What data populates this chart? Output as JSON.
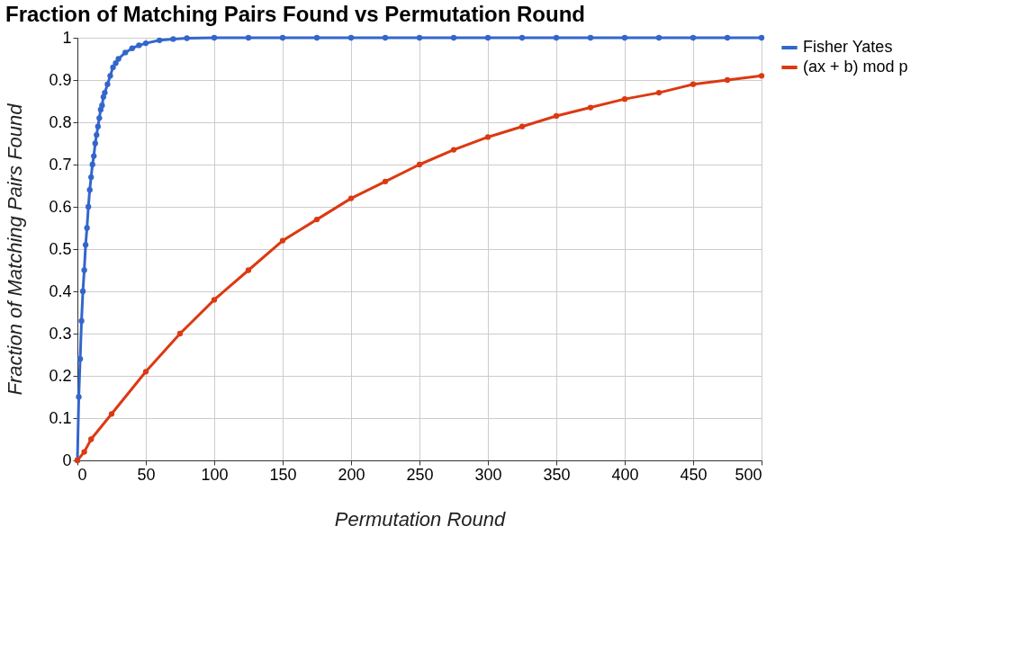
{
  "chart_data": {
    "type": "line",
    "title": "Fraction of Matching Pairs Found vs Permutation Round",
    "xlabel": "Permutation Round",
    "ylabel": "Fraction of Matching Pairs Found",
    "xlim": [
      0,
      500
    ],
    "xticks": [
      0,
      50,
      100,
      150,
      200,
      250,
      300,
      350,
      400,
      450,
      500
    ],
    "ylim": [
      0,
      1
    ],
    "yticks": [
      0,
      0.1,
      0.2,
      0.3,
      0.4,
      0.5,
      0.6,
      0.7,
      0.8,
      0.9,
      1
    ],
    "grid": true,
    "legend": "right",
    "marker": "circle",
    "line_style": "solid",
    "series": [
      {
        "name": "Fisher Yates",
        "color": "#3366cc",
        "x": [
          0,
          1,
          2,
          3,
          4,
          5,
          6,
          7,
          8,
          9,
          10,
          11,
          12,
          13,
          14,
          15,
          16,
          17,
          18,
          19,
          20,
          22,
          24,
          26,
          28,
          30,
          35,
          40,
          45,
          50,
          60,
          70,
          80,
          100,
          125,
          150,
          175,
          200,
          225,
          250,
          275,
          300,
          325,
          350,
          375,
          400,
          425,
          450,
          475,
          500
        ],
        "values": [
          0,
          0.15,
          0.24,
          0.33,
          0.4,
          0.45,
          0.51,
          0.55,
          0.6,
          0.64,
          0.67,
          0.7,
          0.72,
          0.75,
          0.77,
          0.79,
          0.81,
          0.83,
          0.84,
          0.86,
          0.87,
          0.89,
          0.91,
          0.93,
          0.94,
          0.95,
          0.965,
          0.975,
          0.982,
          0.987,
          0.994,
          0.997,
          0.999,
          1,
          1,
          1,
          1,
          1,
          1,
          1,
          1,
          1,
          1,
          1,
          1,
          1,
          1,
          1,
          1,
          1
        ]
      },
      {
        "name": "(ax + b) mod p",
        "color": "#dc3912",
        "x": [
          0,
          5,
          10,
          25,
          50,
          75,
          100,
          125,
          150,
          175,
          200,
          225,
          250,
          275,
          300,
          325,
          350,
          375,
          400,
          425,
          450,
          475,
          500
        ],
        "values": [
          0,
          0.02,
          0.05,
          0.11,
          0.21,
          0.3,
          0.38,
          0.45,
          0.52,
          0.57,
          0.62,
          0.66,
          0.7,
          0.735,
          0.765,
          0.79,
          0.815,
          0.835,
          0.855,
          0.87,
          0.89,
          0.9,
          0.91
        ]
      }
    ]
  }
}
